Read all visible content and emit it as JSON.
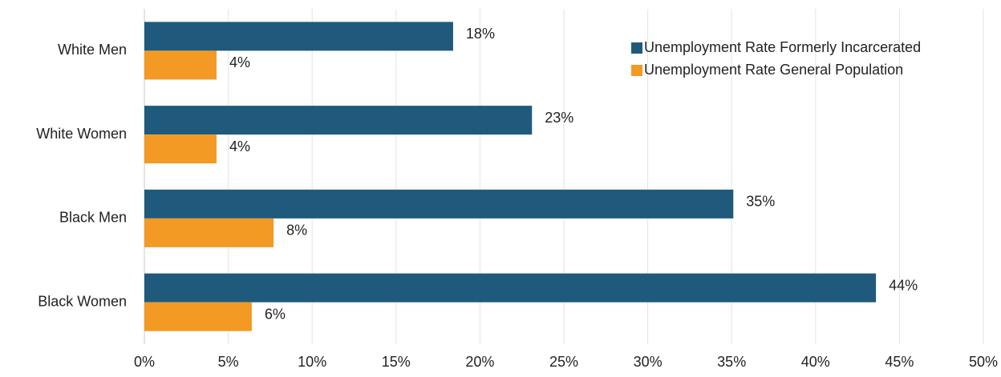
{
  "chart_data": {
    "type": "bar",
    "orientation": "horizontal",
    "categories": [
      "White Men",
      "White Women",
      "Black Men",
      "Black Women"
    ],
    "series": [
      {
        "name": "Unemployment Rate Formerly Incarcerated",
        "color": "#1f5a7d",
        "values": [
          18.4,
          23.1,
          35.1,
          43.6
        ],
        "value_labels": [
          "18%",
          "23%",
          "35%",
          "44%"
        ]
      },
      {
        "name": "Unemployment Rate General Population",
        "color": "#f29a24",
        "values": [
          4.3,
          4.3,
          7.7,
          6.4
        ],
        "value_labels": [
          "4%",
          "4%",
          "8%",
          "6%"
        ]
      }
    ],
    "xlim": [
      0,
      50
    ],
    "xticks": [
      {
        "value": 0,
        "label": "0%"
      },
      {
        "value": 5,
        "label": "5%"
      },
      {
        "value": 10,
        "label": "10%"
      },
      {
        "value": 15,
        "label": "15%"
      },
      {
        "value": 20,
        "label": "20%"
      },
      {
        "value": 25,
        "label": "25%"
      },
      {
        "value": 30,
        "label": "30%"
      },
      {
        "value": 35,
        "label": "35%"
      },
      {
        "value": 40,
        "label": "40%"
      },
      {
        "value": 45,
        "label": "45%"
      },
      {
        "value": 50,
        "label": "50%"
      }
    ],
    "grid": true,
    "legend": "upper right"
  }
}
